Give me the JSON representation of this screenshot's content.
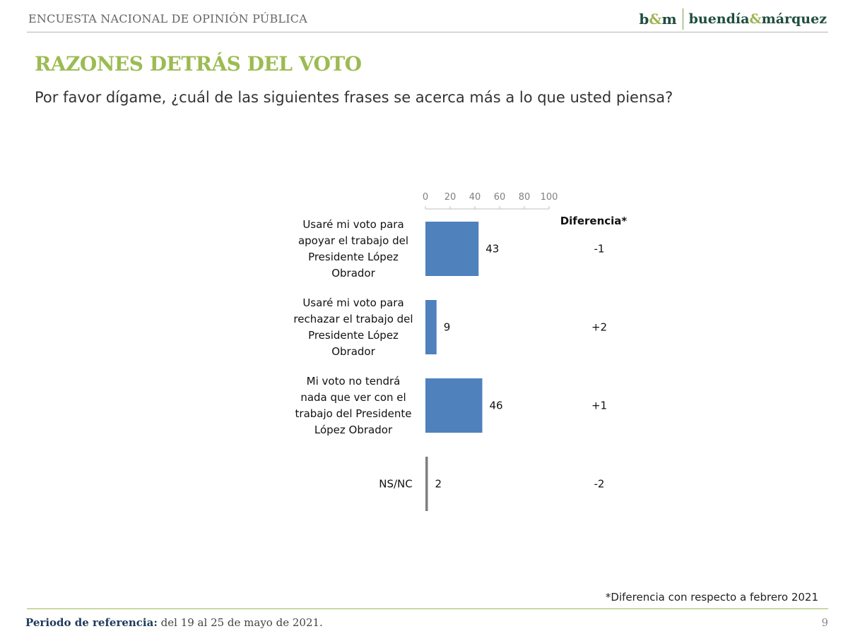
{
  "header": {
    "survey_label": "ENCUESTA NACIONAL DE OPINIÓN PÚBLICA",
    "logo_short_b": "b",
    "logo_short_amp": "&",
    "logo_short_m": "m",
    "logo_full_1": "buendía",
    "logo_full_amp": "&",
    "logo_full_2": "márquez"
  },
  "title": "RAZONES DETRÁS DEL VOTO",
  "question": "Por favor dígame, ¿cuál de las siguientes frases se acerca más a lo que usted piensa?",
  "chart_data": {
    "type": "bar",
    "orientation": "horizontal",
    "xlim": [
      0,
      100
    ],
    "x_ticks": [
      "0",
      "20",
      "40",
      "60",
      "80",
      "100"
    ],
    "diff_header": "Diferencia*",
    "categories": [
      [
        "Usaré mi voto para",
        "apoyar el trabajo del",
        "Presidente López",
        "Obrador"
      ],
      [
        "Usaré mi voto para",
        "rechazar el trabajo del",
        "Presidente López",
        "Obrador"
      ],
      [
        "Mi voto no tendrá",
        "nada que ver con el",
        "trabajo del Presidente",
        "López Obrador"
      ],
      [
        "NS/NC"
      ]
    ],
    "values": [
      43,
      9,
      46,
      2
    ],
    "value_labels": [
      "43",
      "9",
      "46",
      "2"
    ],
    "differences": [
      "-1",
      "+2",
      "+1",
      "-2"
    ],
    "colors": [
      "#4f81bd",
      "#4f81bd",
      "#4f81bd",
      "#7f7f7f"
    ]
  },
  "footnote": "*Diferencia con respecto a febrero 2021",
  "footer": {
    "period_label": "Periodo de referencia:",
    "period_value": " del 19 al 25 de mayo de 2021.",
    "page_number": "9"
  }
}
